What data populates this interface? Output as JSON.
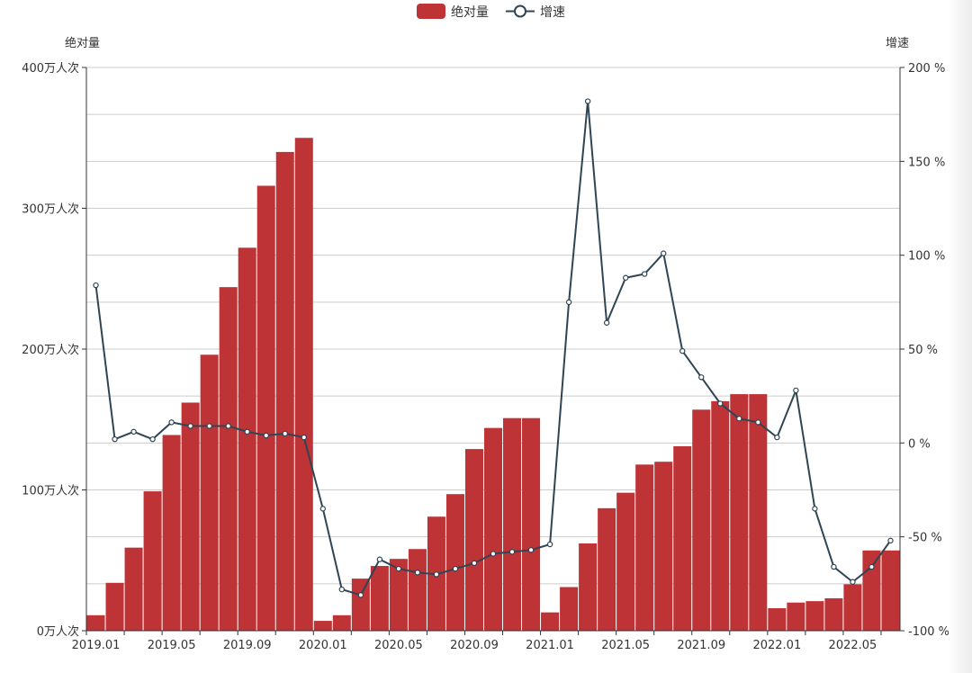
{
  "chart_data": {
    "type": "bar+line",
    "legend": {
      "placement": "top-center",
      "items": [
        "绝对量",
        "增速"
      ]
    },
    "y_left": {
      "label": "绝对量",
      "min": 0,
      "max": 400,
      "ticks": [
        "0万人次",
        "100万人次",
        "200万人次",
        "300万人次",
        "400万人次"
      ]
    },
    "y_right": {
      "label": "增速",
      "min": -100,
      "max": 200,
      "ticks": [
        "-100 %",
        "-50 %",
        "0 %",
        "50 %",
        "100 %",
        "150 %",
        "200 %"
      ]
    },
    "x_tick_labels": [
      "2019.01",
      "2019.05",
      "2019.09",
      "2020.01",
      "2020.05",
      "2020.09",
      "2021.01",
      "2021.05",
      "2021.09",
      "2022.01",
      "2022.05"
    ],
    "grid": true,
    "colors": {
      "bar": "#be3336",
      "line": "#2f4554",
      "axis": "#333333",
      "grid": "#cccccc"
    },
    "series": [
      {
        "name": "绝对量",
        "type": "bar",
        "unit": "万人次",
        "values": [
          11,
          34,
          59,
          99,
          139,
          162,
          196,
          244,
          272,
          316,
          340,
          350,
          7,
          11,
          37,
          46,
          51,
          58,
          81,
          97,
          129,
          144,
          151,
          151,
          13,
          31,
          62,
          87,
          98,
          118,
          120,
          131,
          157,
          163,
          168,
          168,
          16,
          20,
          21,
          23,
          33,
          57,
          57
        ]
      },
      {
        "name": "增速",
        "type": "line",
        "unit": "%",
        "values": [
          84,
          2,
          6,
          2,
          11,
          9,
          9,
          9,
          6,
          4,
          5,
          3,
          -35,
          -78,
          -81,
          -62,
          -67,
          -69,
          -70,
          -67,
          -64,
          -59,
          -58,
          -57,
          -54,
          75,
          182,
          64,
          88,
          90,
          101,
          49,
          35,
          21,
          13,
          11,
          3,
          28,
          -35,
          -66,
          -74,
          -66,
          -52
        ]
      }
    ]
  }
}
